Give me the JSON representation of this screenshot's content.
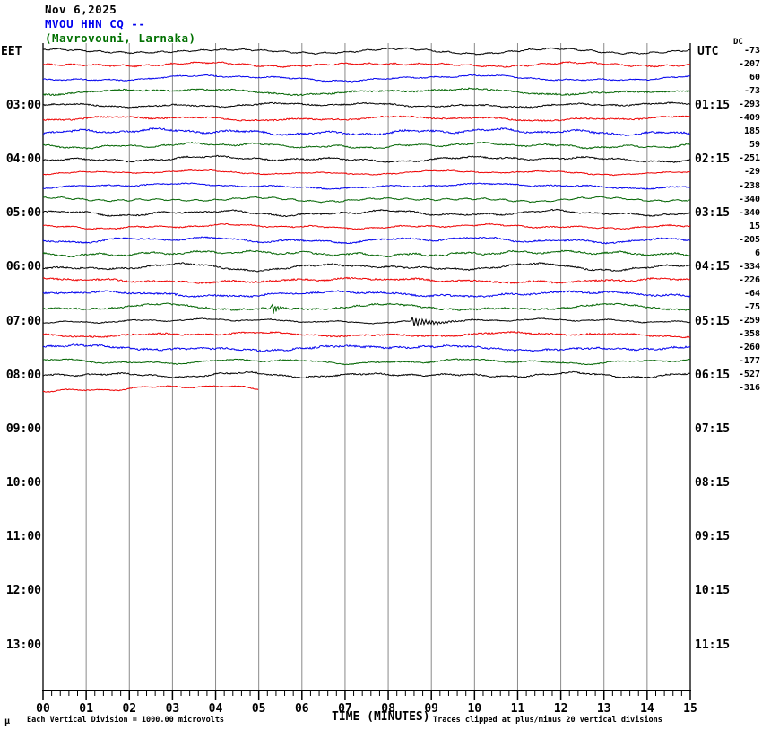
{
  "header": {
    "date_line": "Nov 6,2025",
    "station_line": "MVOU HHN CQ --",
    "location_line": "(Mavrovouni, Larnaka)"
  },
  "axes": {
    "left_label": "EET",
    "right_label": "UTC",
    "dc_label": "DC",
    "bottom_title": "TIME (MINUTES)",
    "minute_labels": [
      "00",
      "01",
      "02",
      "03",
      "04",
      "05",
      "06",
      "07",
      "08",
      "09",
      "10",
      "11",
      "12",
      "13",
      "14",
      "15"
    ]
  },
  "left_times": [
    "03:00",
    "04:00",
    "05:00",
    "06:00",
    "07:00",
    "08:00",
    "09:00",
    "10:00",
    "11:00",
    "12:00",
    "13:00"
  ],
  "right_times": [
    "01:15",
    "02:15",
    "03:15",
    "04:15",
    "05:15",
    "06:15",
    "07:15",
    "08:15",
    "09:15",
    "10:15",
    "11:15"
  ],
  "dc_values": [
    -73,
    -207,
    60,
    -73,
    -293,
    -409,
    185,
    59,
    -251,
    -29,
    -238,
    -340,
    -340,
    15,
    -205,
    6,
    -334,
    -226,
    -64,
    -75,
    -259,
    -358,
    -260,
    -177,
    -527,
    -316
  ],
  "footer": {
    "mu_mark": "μ",
    "left_note": "Each Vertical Division = 1000.00 microvolts",
    "right_note": "Traces clipped at plus/minus 20 vertical divisions"
  },
  "colors": {
    "black": "#000000",
    "red": "#ee0000",
    "blue": "#0000ee",
    "green": "#006400",
    "title_station": "#0000ee",
    "title_location": "#007000",
    "grid": "#8a8a8a",
    "grid_edge": "#5a5a5a",
    "axis": "#000000"
  },
  "chart_data": {
    "type": "line",
    "title": "MVOU HHN CQ -- helicorder, Nov 6,2025 (Mavrovouni, Larnaka)",
    "xlabel": "TIME (MINUTES)",
    "x_range": [
      0,
      15
    ],
    "x_major_tick": 1,
    "x_minor_per_major": 4,
    "grid": "vertical minute lines",
    "left_axis": "EET local time",
    "right_axis": "UTC time",
    "row_duration_minutes": 15,
    "rows": [
      {
        "color": "black",
        "dc": -73
      },
      {
        "color": "red",
        "dc": -207
      },
      {
        "color": "blue",
        "dc": 60
      },
      {
        "color": "green",
        "dc": -73
      },
      {
        "color": "black",
        "dc": -293,
        "eet": "03:00",
        "utc": "01:15"
      },
      {
        "color": "red",
        "dc": -409
      },
      {
        "color": "blue",
        "dc": 185
      },
      {
        "color": "green",
        "dc": 59
      },
      {
        "color": "black",
        "dc": -251,
        "eet": "04:00",
        "utc": "02:15"
      },
      {
        "color": "red",
        "dc": -29
      },
      {
        "color": "blue",
        "dc": -238
      },
      {
        "color": "green",
        "dc": -340
      },
      {
        "color": "black",
        "dc": -340,
        "eet": "05:00",
        "utc": "03:15"
      },
      {
        "color": "red",
        "dc": 15
      },
      {
        "color": "blue",
        "dc": -205
      },
      {
        "color": "green",
        "dc": 6
      },
      {
        "color": "black",
        "dc": -334,
        "eet": "06:00",
        "utc": "04:15"
      },
      {
        "color": "red",
        "dc": -226
      },
      {
        "color": "blue",
        "dc": -64
      },
      {
        "color": "green",
        "dc": -75,
        "event_minute": 5.3
      },
      {
        "color": "black",
        "dc": -259,
        "eet": "07:00",
        "utc": "05:15",
        "event_minute": 8.55
      },
      {
        "color": "red",
        "dc": -358
      },
      {
        "color": "blue",
        "dc": -260
      },
      {
        "color": "green",
        "dc": -177
      },
      {
        "color": "black",
        "dc": -527,
        "eet": "08:00",
        "utc": "06:15"
      },
      {
        "color": "red",
        "dc": -316,
        "partial_end_minute": 5.0
      }
    ],
    "empty_time_labels_continue_to": {
      "eet": "13:00",
      "utc": "11:15"
    },
    "annotations": [
      "Each Vertical Division = 1000.00 microvolts",
      "Traces clipped at plus/minus 20 vertical divisions"
    ]
  },
  "traces": {
    "count": 26,
    "color_cycle": [
      "black",
      "red",
      "blue",
      "green"
    ],
    "partial": {
      "index": 25,
      "end_minute": 5.0
    },
    "events": [
      {
        "trace": 19,
        "minute": 5.3,
        "amp": 7,
        "tau": 6,
        "freq": 2.1
      },
      {
        "trace": 20,
        "minute": 8.55,
        "amp": 5.5,
        "tau": 22,
        "freq": 1.7
      }
    ]
  }
}
